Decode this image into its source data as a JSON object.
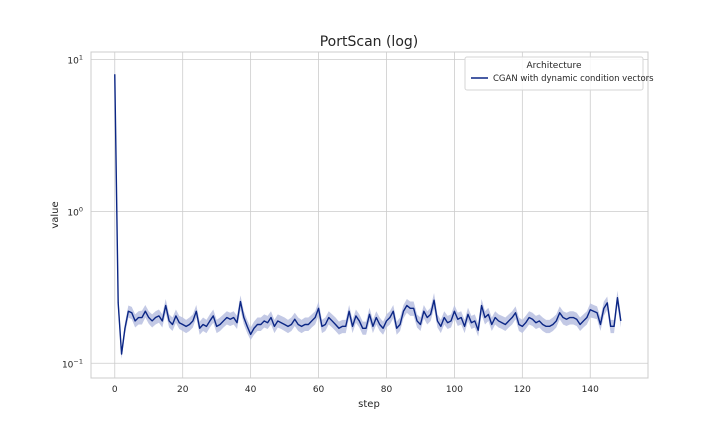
{
  "chart_data": {
    "type": "line",
    "title": "PortScan (log)",
    "xlabel": "step",
    "ylabel": "value",
    "yscale": "log",
    "xlim": [
      -7,
      157
    ],
    "ylim": [
      0.08,
      1.12
    ],
    "xticks": [
      0,
      20,
      40,
      60,
      80,
      100,
      120,
      140
    ],
    "yticks": [
      {
        "value": 0.1,
        "base": "10",
        "exp": "−1"
      },
      {
        "value": 1,
        "base": "10",
        "exp": "0"
      },
      {
        "value": 10,
        "base": "10",
        "exp": "1"
      }
    ],
    "grid": true,
    "legend": {
      "title": "Architecture",
      "position": "top-right"
    },
    "series": [
      {
        "name": "CGAN with dynamic condition vectors",
        "color": "#0b2685",
        "band_color": "#b8c0e0",
        "x": [
          0,
          1,
          2,
          3,
          4,
          5,
          6,
          7,
          8,
          9,
          10,
          11,
          12,
          13,
          14,
          15,
          16,
          17,
          18,
          19,
          20,
          21,
          22,
          23,
          24,
          25,
          26,
          27,
          28,
          29,
          30,
          31,
          32,
          33,
          34,
          35,
          36,
          37,
          38,
          39,
          40,
          41,
          42,
          43,
          44,
          45,
          46,
          47,
          48,
          49,
          50,
          51,
          52,
          53,
          54,
          55,
          56,
          57,
          58,
          59,
          60,
          61,
          62,
          63,
          64,
          65,
          66,
          67,
          68,
          69,
          70,
          71,
          72,
          73,
          74,
          75,
          76,
          77,
          78,
          79,
          80,
          81,
          82,
          83,
          84,
          85,
          86,
          87,
          88,
          89,
          90,
          91,
          92,
          93,
          94,
          95,
          96,
          97,
          98,
          99,
          100,
          101,
          102,
          103,
          104,
          105,
          106,
          107,
          108,
          109,
          110,
          111,
          112,
          113,
          114,
          115,
          116,
          117,
          118,
          119,
          120,
          121,
          122,
          123,
          124,
          125,
          126,
          127,
          128,
          129,
          130,
          131,
          132,
          133,
          134,
          135,
          136,
          137,
          138,
          139,
          140,
          141,
          142,
          143,
          144,
          145,
          146,
          147,
          148,
          149
        ],
        "y": [
          8.0,
          0.25,
          0.115,
          0.17,
          0.22,
          0.215,
          0.19,
          0.2,
          0.2,
          0.22,
          0.2,
          0.19,
          0.2,
          0.205,
          0.19,
          0.24,
          0.19,
          0.18,
          0.205,
          0.185,
          0.18,
          0.175,
          0.18,
          0.19,
          0.22,
          0.17,
          0.18,
          0.175,
          0.19,
          0.205,
          0.175,
          0.18,
          0.19,
          0.2,
          0.195,
          0.2,
          0.185,
          0.255,
          0.2,
          0.175,
          0.155,
          0.17,
          0.18,
          0.18,
          0.19,
          0.185,
          0.2,
          0.175,
          0.19,
          0.185,
          0.18,
          0.175,
          0.18,
          0.195,
          0.18,
          0.175,
          0.18,
          0.18,
          0.19,
          0.2,
          0.23,
          0.175,
          0.18,
          0.2,
          0.19,
          0.18,
          0.17,
          0.175,
          0.175,
          0.22,
          0.175,
          0.205,
          0.19,
          0.17,
          0.17,
          0.21,
          0.175,
          0.2,
          0.18,
          0.17,
          0.19,
          0.2,
          0.22,
          0.17,
          0.18,
          0.22,
          0.24,
          0.23,
          0.23,
          0.19,
          0.18,
          0.22,
          0.2,
          0.21,
          0.26,
          0.19,
          0.175,
          0.2,
          0.185,
          0.19,
          0.22,
          0.195,
          0.2,
          0.175,
          0.21,
          0.185,
          0.19,
          0.165,
          0.24,
          0.2,
          0.21,
          0.18,
          0.2,
          0.19,
          0.185,
          0.18,
          0.19,
          0.2,
          0.215,
          0.18,
          0.175,
          0.185,
          0.2,
          0.195,
          0.185,
          0.19,
          0.18,
          0.175,
          0.175,
          0.18,
          0.19,
          0.215,
          0.2,
          0.195,
          0.2,
          0.2,
          0.195,
          0.18,
          0.19,
          0.2,
          0.225,
          0.22,
          0.215,
          0.18,
          0.23,
          0.25,
          0.175,
          0.175,
          0.27,
          0.19
        ],
        "lower": [
          6.0,
          0.22,
          0.107,
          0.155,
          0.2,
          0.195,
          0.172,
          0.18,
          0.18,
          0.2,
          0.182,
          0.172,
          0.18,
          0.185,
          0.172,
          0.215,
          0.172,
          0.163,
          0.185,
          0.168,
          0.163,
          0.158,
          0.163,
          0.172,
          0.2,
          0.154,
          0.163,
          0.158,
          0.172,
          0.185,
          0.158,
          0.163,
          0.172,
          0.18,
          0.176,
          0.18,
          0.168,
          0.225,
          0.18,
          0.158,
          0.142,
          0.154,
          0.163,
          0.163,
          0.172,
          0.168,
          0.18,
          0.158,
          0.172,
          0.168,
          0.163,
          0.158,
          0.163,
          0.176,
          0.163,
          0.158,
          0.163,
          0.163,
          0.172,
          0.18,
          0.205,
          0.158,
          0.163,
          0.18,
          0.172,
          0.163,
          0.154,
          0.158,
          0.158,
          0.2,
          0.158,
          0.185,
          0.172,
          0.154,
          0.154,
          0.19,
          0.158,
          0.18,
          0.163,
          0.154,
          0.172,
          0.18,
          0.198,
          0.154,
          0.163,
          0.198,
          0.215,
          0.205,
          0.205,
          0.172,
          0.163,
          0.198,
          0.18,
          0.19,
          0.23,
          0.172,
          0.158,
          0.18,
          0.168,
          0.172,
          0.198,
          0.176,
          0.18,
          0.158,
          0.19,
          0.168,
          0.172,
          0.15,
          0.21,
          0.18,
          0.19,
          0.163,
          0.18,
          0.172,
          0.168,
          0.163,
          0.172,
          0.18,
          0.195,
          0.163,
          0.158,
          0.168,
          0.18,
          0.176,
          0.168,
          0.172,
          0.163,
          0.158,
          0.158,
          0.163,
          0.172,
          0.195,
          0.18,
          0.176,
          0.18,
          0.18,
          0.176,
          0.163,
          0.172,
          0.18,
          0.2,
          0.198,
          0.195,
          0.163,
          0.205,
          0.225,
          0.158,
          0.158,
          0.24,
          0.172
        ],
        "upper": [
          10.0,
          0.29,
          0.125,
          0.185,
          0.24,
          0.235,
          0.21,
          0.22,
          0.222,
          0.242,
          0.22,
          0.21,
          0.22,
          0.226,
          0.21,
          0.265,
          0.21,
          0.2,
          0.226,
          0.205,
          0.2,
          0.193,
          0.2,
          0.21,
          0.242,
          0.188,
          0.2,
          0.193,
          0.21,
          0.226,
          0.193,
          0.2,
          0.21,
          0.22,
          0.215,
          0.22,
          0.205,
          0.28,
          0.22,
          0.193,
          0.172,
          0.188,
          0.2,
          0.2,
          0.21,
          0.205,
          0.22,
          0.193,
          0.21,
          0.205,
          0.2,
          0.193,
          0.2,
          0.215,
          0.2,
          0.193,
          0.2,
          0.2,
          0.21,
          0.22,
          0.255,
          0.193,
          0.2,
          0.22,
          0.21,
          0.2,
          0.188,
          0.193,
          0.193,
          0.242,
          0.193,
          0.226,
          0.21,
          0.188,
          0.188,
          0.232,
          0.193,
          0.22,
          0.2,
          0.188,
          0.21,
          0.22,
          0.242,
          0.188,
          0.2,
          0.242,
          0.265,
          0.255,
          0.255,
          0.21,
          0.2,
          0.242,
          0.22,
          0.232,
          0.29,
          0.21,
          0.193,
          0.22,
          0.205,
          0.21,
          0.242,
          0.215,
          0.22,
          0.193,
          0.232,
          0.205,
          0.21,
          0.182,
          0.265,
          0.22,
          0.232,
          0.2,
          0.22,
          0.21,
          0.205,
          0.2,
          0.21,
          0.22,
          0.237,
          0.2,
          0.193,
          0.205,
          0.22,
          0.215,
          0.205,
          0.21,
          0.2,
          0.193,
          0.193,
          0.2,
          0.21,
          0.237,
          0.22,
          0.215,
          0.22,
          0.22,
          0.215,
          0.2,
          0.21,
          0.22,
          0.248,
          0.242,
          0.237,
          0.2,
          0.255,
          0.275,
          0.193,
          0.193,
          0.3,
          0.21
        ]
      }
    ]
  }
}
